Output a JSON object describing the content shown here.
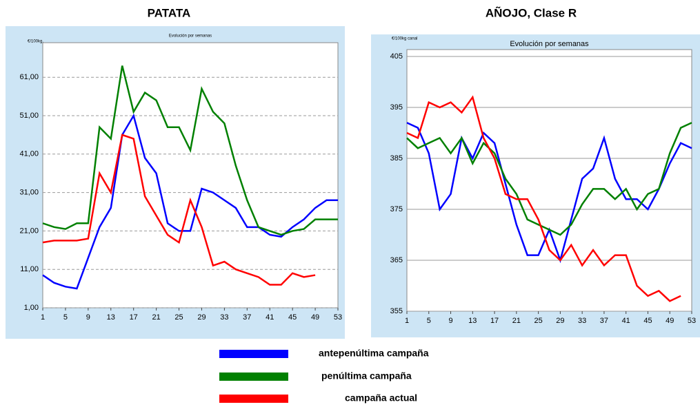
{
  "chart_data": [
    {
      "type": "line",
      "title": "PATATA",
      "subtitle": "Evolución por semanas",
      "y_label": "€/100kg.",
      "x": [
        1,
        3,
        5,
        7,
        9,
        11,
        13,
        15,
        17,
        19,
        21,
        23,
        25,
        27,
        29,
        31,
        33,
        35,
        37,
        39,
        41,
        43,
        45,
        47,
        49,
        51,
        53
      ],
      "xlim": [
        1,
        53
      ],
      "xticks": [
        1,
        5,
        9,
        13,
        17,
        21,
        25,
        29,
        33,
        37,
        41,
        45,
        49,
        53
      ],
      "ylim": [
        1,
        70
      ],
      "yticks": [
        {
          "value": 1,
          "label": "1,00"
        },
        {
          "value": 11,
          "label": "11,00"
        },
        {
          "value": 21,
          "label": "21,00"
        },
        {
          "value": 31,
          "label": "31,00"
        },
        {
          "value": 41,
          "label": "41,00"
        },
        {
          "value": 51,
          "label": "51,00"
        },
        {
          "value": 61,
          "label": "61,00"
        }
      ],
      "grid": true,
      "series": [
        {
          "name": "antepenúltima campaña",
          "color": "#0000ff",
          "values": [
            9.5,
            7.5,
            6.5,
            6,
            14,
            22,
            27,
            46,
            51,
            40,
            36,
            23,
            21,
            21,
            32,
            31,
            29,
            27,
            22,
            22,
            20,
            19.5,
            22,
            24,
            27,
            29,
            29
          ]
        },
        {
          "name": "penúltima campaña",
          "color": "#008000",
          "values": [
            23,
            22,
            21.5,
            23,
            23,
            48,
            45,
            64,
            52,
            57,
            55,
            48,
            48,
            42,
            58,
            52,
            49,
            38,
            29,
            22,
            21,
            20,
            21,
            21.5,
            24,
            24,
            24
          ]
        },
        {
          "name": "campaña actual",
          "color": "#ff0000",
          "values": [
            18,
            18.5,
            18.5,
            18.5,
            19,
            36,
            31,
            46,
            45,
            30,
            25,
            20,
            18,
            29,
            22,
            12,
            13,
            11,
            10,
            9,
            7,
            7,
            10,
            9,
            9.5,
            null,
            null
          ]
        }
      ]
    },
    {
      "type": "line",
      "title": "AÑOJO, Clase R",
      "subtitle": "Evolución por semanas",
      "y_label": "€/100kg canal",
      "x": [
        1,
        3,
        5,
        7,
        9,
        11,
        13,
        15,
        17,
        19,
        21,
        23,
        25,
        27,
        29,
        31,
        33,
        35,
        37,
        39,
        41,
        43,
        45,
        47,
        49,
        51,
        53
      ],
      "xlim": [
        1,
        53
      ],
      "xticks": [
        1,
        5,
        9,
        13,
        17,
        21,
        25,
        29,
        33,
        37,
        41,
        45,
        49,
        53
      ],
      "ylim": [
        355,
        405
      ],
      "yticks": [
        355,
        365,
        375,
        385,
        395,
        405
      ],
      "grid": true,
      "series": [
        {
          "name": "antepenúltima campaña",
          "color": "#0000ff",
          "values": [
            392,
            391,
            386,
            375,
            378,
            389,
            385,
            390,
            388,
            380,
            372,
            366,
            366,
            371,
            365,
            373,
            381,
            383,
            389,
            381,
            377,
            377,
            375,
            379,
            384,
            388,
            387
          ]
        },
        {
          "name": "penúltima campaña",
          "color": "#008000",
          "values": [
            389,
            387,
            388,
            389,
            386,
            389,
            384,
            388,
            386,
            381,
            378,
            373,
            372,
            371,
            370,
            372,
            376,
            379,
            379,
            377,
            379,
            375,
            378,
            379,
            386,
            391,
            392
          ]
        },
        {
          "name": "campaña actual",
          "color": "#ff0000",
          "values": [
            390,
            389,
            396,
            395,
            396,
            394,
            397,
            389,
            385,
            378,
            377,
            377,
            373,
            367,
            365,
            368,
            364,
            367,
            364,
            366,
            366,
            360,
            358,
            359,
            357,
            358,
            null
          ]
        }
      ]
    }
  ]
}
